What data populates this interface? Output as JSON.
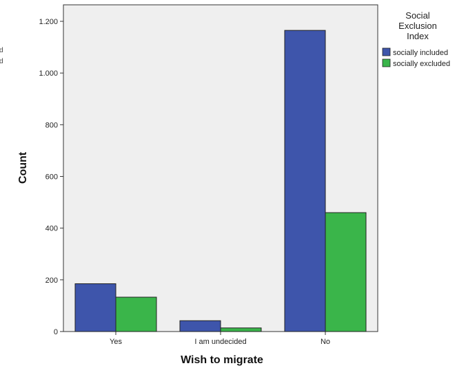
{
  "chart_data": {
    "type": "bar",
    "title": "",
    "xlabel": "Wish to migrate",
    "ylabel": "Count",
    "categories": [
      "Yes",
      "I am undecided",
      "No"
    ],
    "series": [
      {
        "name": "socially included",
        "values": [
          185,
          42,
          1165
        ],
        "color": "#3e55ab"
      },
      {
        "name": "socially excluded",
        "values": [
          133,
          14,
          460
        ],
        "color": "#3ab54a"
      }
    ],
    "ylim": [
      0,
      1200
    ],
    "yticks": [
      0,
      200,
      400,
      600,
      800,
      1000,
      1200
    ],
    "ytick_labels": [
      "0",
      "200",
      "400",
      "600",
      "800",
      "1.000",
      "1.200"
    ],
    "grid": false,
    "plot_background": "#efefef",
    "legend": {
      "title_lines": [
        "Social",
        "Exclusion",
        "Index"
      ],
      "position": "right"
    },
    "left_edge_fragments": [
      "d",
      "d"
    ]
  }
}
